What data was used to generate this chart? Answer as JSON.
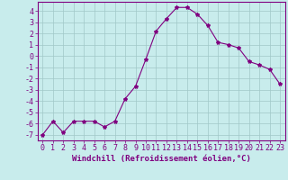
{
  "x": [
    0,
    1,
    2,
    3,
    4,
    5,
    6,
    7,
    8,
    9,
    10,
    11,
    12,
    13,
    14,
    15,
    16,
    17,
    18,
    19,
    20,
    21,
    22,
    23
  ],
  "y": [
    -7,
    -5.8,
    -6.8,
    -5.8,
    -5.8,
    -5.8,
    -6.3,
    -5.8,
    -3.8,
    -2.7,
    -0.3,
    2.2,
    3.3,
    4.3,
    4.3,
    3.7,
    2.7,
    1.2,
    1.0,
    0.7,
    -0.5,
    -0.8,
    -1.2,
    -2.5
  ],
  "line_color": "#800080",
  "marker": "*",
  "marker_size": 3,
  "background_color": "#c8ecec",
  "grid_color": "#a0c8c8",
  "xlabel": "Windchill (Refroidissement éolien,°C)",
  "xlabel_fontsize": 6.5,
  "tick_color": "#800080",
  "tick_fontsize": 6,
  "xlim": [
    -0.5,
    23.5
  ],
  "ylim": [
    -7.5,
    4.8
  ],
  "yticks": [
    -7,
    -6,
    -5,
    -4,
    -3,
    -2,
    -1,
    0,
    1,
    2,
    3,
    4
  ],
  "xticks": [
    0,
    1,
    2,
    3,
    4,
    5,
    6,
    7,
    8,
    9,
    10,
    11,
    12,
    13,
    14,
    15,
    16,
    17,
    18,
    19,
    20,
    21,
    22,
    23
  ]
}
